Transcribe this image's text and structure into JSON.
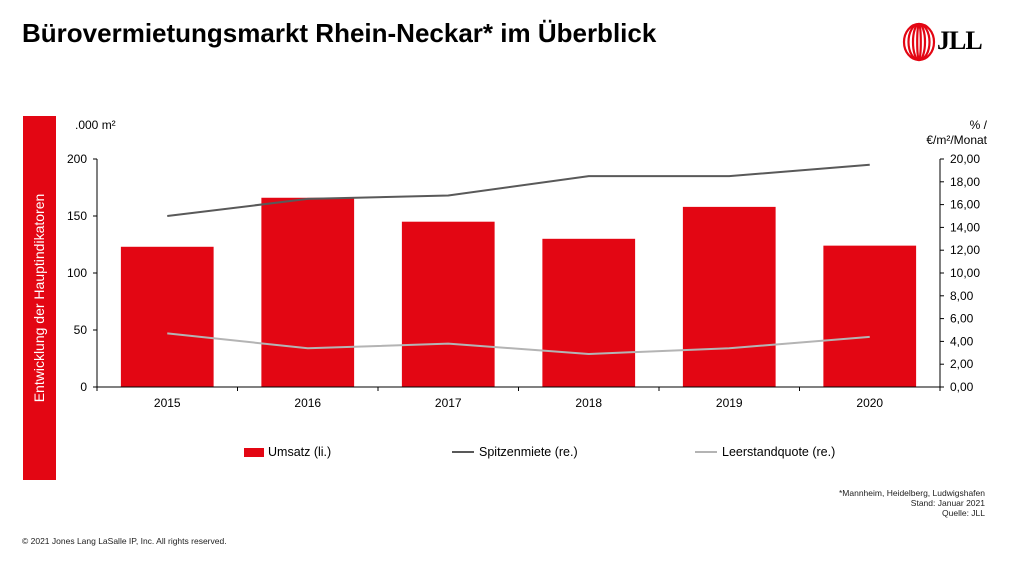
{
  "page": {
    "title": "Bürovermietungsmarkt Rhein-Neckar* im Überblick",
    "logo_text": "JLL",
    "side_label": "Entwicklung der Hauptindikatoren",
    "unit_left": ".000 m²",
    "unit_right_line1": "% /",
    "unit_right_line2": "€/m²/Monat",
    "footnote_line1": "*Mannheim, Heidelberg, Ludwigshafen",
    "footnote_line2": "Stand: Januar 2021",
    "footnote_line3": "Quelle: JLL",
    "copyright": "© 2021 Jones Lang LaSalle IP, Inc. All rights reserved.",
    "brand_color": "#e30613"
  },
  "chart_data": {
    "type": "bar",
    "categories": [
      "2015",
      "2016",
      "2017",
      "2018",
      "2019",
      "2020"
    ],
    "y_left": {
      "ylim": [
        0,
        200
      ],
      "ticks": [
        "0",
        "50",
        "100",
        "150",
        "200"
      ]
    },
    "y_right": {
      "ylim": [
        0,
        20
      ],
      "ticks": [
        "0,00",
        "2,00",
        "4,00",
        "6,00",
        "8,00",
        "10,00",
        "12,00",
        "14,00",
        "16,00",
        "18,00",
        "20,00"
      ]
    },
    "series": [
      {
        "name": "Umsatz (li.)",
        "type": "bar",
        "axis": "left",
        "color": "#e30613",
        "values": [
          123,
          166,
          145,
          130,
          158,
          124
        ]
      },
      {
        "name": "Spitzenmiete (re.)",
        "type": "line",
        "axis": "right",
        "color": "#595959",
        "values": [
          15.0,
          16.5,
          16.8,
          18.5,
          18.5,
          19.5
        ]
      },
      {
        "name": "Leerstandquote (re.)",
        "type": "line",
        "axis": "right",
        "color": "#b4b4b4",
        "values": [
          4.7,
          3.4,
          3.8,
          2.9,
          3.4,
          4.4
        ]
      }
    ],
    "grid": false,
    "legend_position": "bottom"
  }
}
